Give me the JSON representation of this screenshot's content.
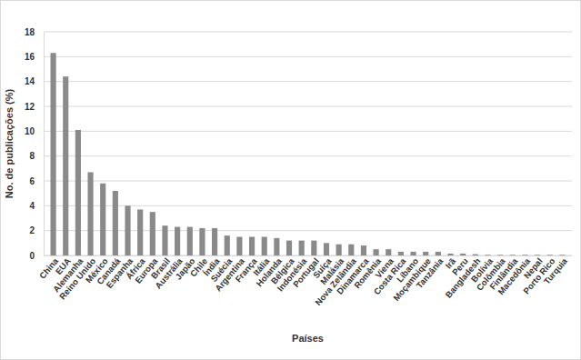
{
  "chart_data": {
    "type": "bar",
    "x_label": "Países",
    "y_label": "No. de publicações (%)",
    "categories": [
      "China",
      "EUA",
      "Alemanha",
      "Reino Unido",
      "México",
      "Canadá",
      "Espanha",
      "África",
      "Europa",
      "Brasil",
      "Austrália",
      "Japão",
      "Chile",
      "Índia",
      "Suécia",
      "Argentina",
      "França",
      "Itália",
      "Holanda",
      "Bélgica",
      "Indonésia",
      "Portugal",
      "Suíça",
      "Malásia",
      "Nova Zelândia",
      "Dinamarca",
      "Romênia",
      "Viena",
      "Costa Rica",
      "Líbano",
      "Moçambique",
      "Tanzânia",
      "Irã",
      "Peru",
      "Bangladesh",
      "Bolívia",
      "Colômbia",
      "Finlândia",
      "Macedônia",
      "Nepal",
      "Porto Rico",
      "Turquia"
    ],
    "values": [
      16.3,
      14.4,
      10.1,
      6.7,
      5.8,
      5.2,
      4.0,
      3.7,
      3.5,
      2.4,
      2.3,
      2.3,
      2.2,
      2.2,
      1.6,
      1.5,
      1.5,
      1.5,
      1.4,
      1.2,
      1.2,
      1.2,
      1.0,
      0.9,
      0.9,
      0.8,
      0.5,
      0.5,
      0.3,
      0.3,
      0.3,
      0.3,
      0.15,
      0.15,
      0.1,
      0.05,
      0.05,
      0.05,
      0.05,
      0.05,
      0.05,
      0.05
    ],
    "color": "#8a8a8a",
    "ylim": [
      0,
      18
    ],
    "yticks": [
      0,
      2,
      4,
      6,
      8,
      10,
      12,
      14,
      16,
      18
    ],
    "grid": true
  }
}
